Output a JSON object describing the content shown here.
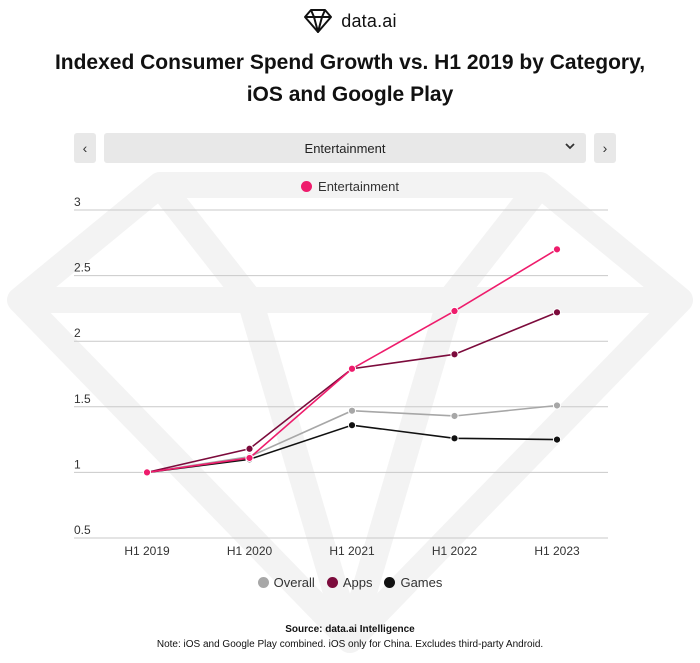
{
  "brand": {
    "name": "data.ai"
  },
  "title": "Indexed Consumer Spend Growth vs. H1 2019 by Category, iOS and Google Play",
  "selector": {
    "value": "Entertainment",
    "prev_label": "‹",
    "next_label": "›"
  },
  "colors": {
    "Entertainment": "#ee1c6c",
    "Overall": "#a7a7a7",
    "Apps": "#7c0b3c",
    "Games": "#111111",
    "grid": "#c9c9c9"
  },
  "chart_data": {
    "type": "line",
    "categories": [
      "H1 2019",
      "H1 2020",
      "H1 2021",
      "H1 2022",
      "H1 2023"
    ],
    "ylim": [
      0.5,
      3
    ],
    "yticks": [
      "0.5",
      "1",
      "1.5",
      "2",
      "2.5",
      "3"
    ],
    "series": [
      {
        "name": "Overall",
        "values": [
          1.0,
          1.12,
          1.47,
          1.43,
          1.51
        ]
      },
      {
        "name": "Games",
        "values": [
          1.0,
          1.1,
          1.36,
          1.26,
          1.25
        ]
      },
      {
        "name": "Apps",
        "values": [
          1.0,
          1.18,
          1.79,
          1.9,
          2.22
        ]
      },
      {
        "name": "Entertainment",
        "values": [
          1.0,
          1.11,
          1.79,
          2.23,
          2.7
        ]
      }
    ],
    "legend_top": [
      "Entertainment"
    ],
    "legend_bottom": [
      "Overall",
      "Apps",
      "Games"
    ]
  },
  "source": "Source: data.ai Intelligence",
  "note": "Note: iOS and Google Play combined. iOS only for China. Excludes third-party Android."
}
